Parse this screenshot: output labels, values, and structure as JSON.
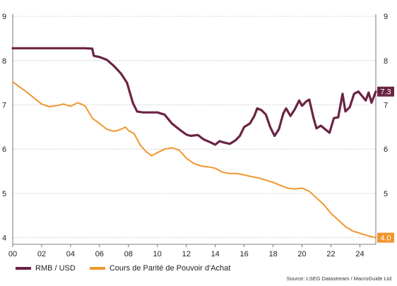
{
  "chart_data": {
    "type": "line",
    "title": "",
    "xlabel": "",
    "ylabel": "",
    "x_ticks": [
      "00",
      "02",
      "04",
      "06",
      "08",
      "10",
      "12",
      "14",
      "16",
      "18",
      "20",
      "22",
      "24"
    ],
    "y_ticks": [
      "4",
      "5",
      "6",
      "7",
      "8",
      "9"
    ],
    "ylim": [
      3.85,
      9.05
    ],
    "xlim": [
      2000.0,
      2025.1
    ],
    "grid": "horizontal dotted",
    "legend_position": "bottom-left",
    "series": [
      {
        "name": "RMB / USD",
        "color": "#6b2344",
        "end_label": "7.3",
        "points": [
          [
            2000.0,
            8.28
          ],
          [
            2001.0,
            8.28
          ],
          [
            2002.0,
            8.28
          ],
          [
            2003.0,
            8.28
          ],
          [
            2004.0,
            8.28
          ],
          [
            2005.0,
            8.28
          ],
          [
            2005.5,
            8.27
          ],
          [
            2005.6,
            8.11
          ],
          [
            2006.0,
            8.08
          ],
          [
            2006.5,
            8.02
          ],
          [
            2007.0,
            7.88
          ],
          [
            2007.5,
            7.7
          ],
          [
            2007.9,
            7.5
          ],
          [
            2008.3,
            7.05
          ],
          [
            2008.6,
            6.85
          ],
          [
            2009.0,
            6.83
          ],
          [
            2009.5,
            6.83
          ],
          [
            2010.0,
            6.83
          ],
          [
            2010.5,
            6.78
          ],
          [
            2010.7,
            6.7
          ],
          [
            2011.0,
            6.58
          ],
          [
            2011.5,
            6.45
          ],
          [
            2012.0,
            6.33
          ],
          [
            2012.3,
            6.3
          ],
          [
            2012.8,
            6.32
          ],
          [
            2013.2,
            6.22
          ],
          [
            2013.7,
            6.15
          ],
          [
            2014.0,
            6.1
          ],
          [
            2014.3,
            6.18
          ],
          [
            2014.6,
            6.15
          ],
          [
            2015.0,
            6.12
          ],
          [
            2015.4,
            6.2
          ],
          [
            2015.7,
            6.3
          ],
          [
            2016.0,
            6.5
          ],
          [
            2016.4,
            6.58
          ],
          [
            2016.7,
            6.75
          ],
          [
            2016.9,
            6.92
          ],
          [
            2017.2,
            6.88
          ],
          [
            2017.5,
            6.78
          ],
          [
            2017.8,
            6.5
          ],
          [
            2018.1,
            6.3
          ],
          [
            2018.4,
            6.45
          ],
          [
            2018.7,
            6.8
          ],
          [
            2018.9,
            6.92
          ],
          [
            2019.2,
            6.75
          ],
          [
            2019.5,
            6.9
          ],
          [
            2019.8,
            7.1
          ],
          [
            2020.0,
            6.98
          ],
          [
            2020.3,
            7.08
          ],
          [
            2020.5,
            7.12
          ],
          [
            2020.8,
            6.7
          ],
          [
            2021.0,
            6.47
          ],
          [
            2021.3,
            6.53
          ],
          [
            2021.6,
            6.45
          ],
          [
            2021.9,
            6.37
          ],
          [
            2022.2,
            6.7
          ],
          [
            2022.5,
            6.72
          ],
          [
            2022.8,
            7.25
          ],
          [
            2023.0,
            6.85
          ],
          [
            2023.3,
            6.95
          ],
          [
            2023.6,
            7.25
          ],
          [
            2023.9,
            7.3
          ],
          [
            2024.2,
            7.18
          ],
          [
            2024.4,
            7.1
          ],
          [
            2024.6,
            7.28
          ],
          [
            2024.8,
            7.05
          ],
          [
            2025.1,
            7.3
          ]
        ]
      },
      {
        "name": "Cours de Parité de Pouvoir d'Achat",
        "color": "#f0962e",
        "end_label": "4.0",
        "points": [
          [
            2000.0,
            7.52
          ],
          [
            2000.5,
            7.4
          ],
          [
            2001.0,
            7.28
          ],
          [
            2001.5,
            7.15
          ],
          [
            2002.0,
            7.02
          ],
          [
            2002.5,
            6.96
          ],
          [
            2003.0,
            6.98
          ],
          [
            2003.5,
            7.02
          ],
          [
            2004.0,
            6.97
          ],
          [
            2004.5,
            7.05
          ],
          [
            2005.0,
            6.98
          ],
          [
            2005.5,
            6.7
          ],
          [
            2006.0,
            6.58
          ],
          [
            2006.5,
            6.45
          ],
          [
            2007.0,
            6.4
          ],
          [
            2007.5,
            6.45
          ],
          [
            2007.8,
            6.5
          ],
          [
            2008.0,
            6.42
          ],
          [
            2008.4,
            6.35
          ],
          [
            2008.8,
            6.1
          ],
          [
            2009.2,
            5.95
          ],
          [
            2009.6,
            5.85
          ],
          [
            2010.0,
            5.92
          ],
          [
            2010.5,
            6.0
          ],
          [
            2011.0,
            6.03
          ],
          [
            2011.5,
            5.98
          ],
          [
            2012.0,
            5.8
          ],
          [
            2012.5,
            5.68
          ],
          [
            2013.0,
            5.62
          ],
          [
            2013.5,
            5.6
          ],
          [
            2014.0,
            5.57
          ],
          [
            2014.5,
            5.48
          ],
          [
            2015.0,
            5.45
          ],
          [
            2015.5,
            5.45
          ],
          [
            2016.0,
            5.42
          ],
          [
            2016.5,
            5.38
          ],
          [
            2017.0,
            5.35
          ],
          [
            2017.5,
            5.3
          ],
          [
            2018.0,
            5.25
          ],
          [
            2018.5,
            5.18
          ],
          [
            2019.0,
            5.12
          ],
          [
            2019.5,
            5.1
          ],
          [
            2020.0,
            5.12
          ],
          [
            2020.5,
            5.05
          ],
          [
            2021.0,
            4.9
          ],
          [
            2021.5,
            4.75
          ],
          [
            2022.0,
            4.55
          ],
          [
            2022.5,
            4.4
          ],
          [
            2023.0,
            4.25
          ],
          [
            2023.5,
            4.15
          ],
          [
            2024.0,
            4.1
          ],
          [
            2024.5,
            4.05
          ],
          [
            2025.1,
            4.0
          ]
        ]
      }
    ]
  },
  "legend": {
    "items": [
      {
        "label": "RMB / USD",
        "color": "#6b2344"
      },
      {
        "label": "Cours de Parité de Pouvoir d'Achat",
        "color": "#f0962e"
      }
    ]
  },
  "source": "Source: LSEG Datastream / MacroGuide Ltd"
}
